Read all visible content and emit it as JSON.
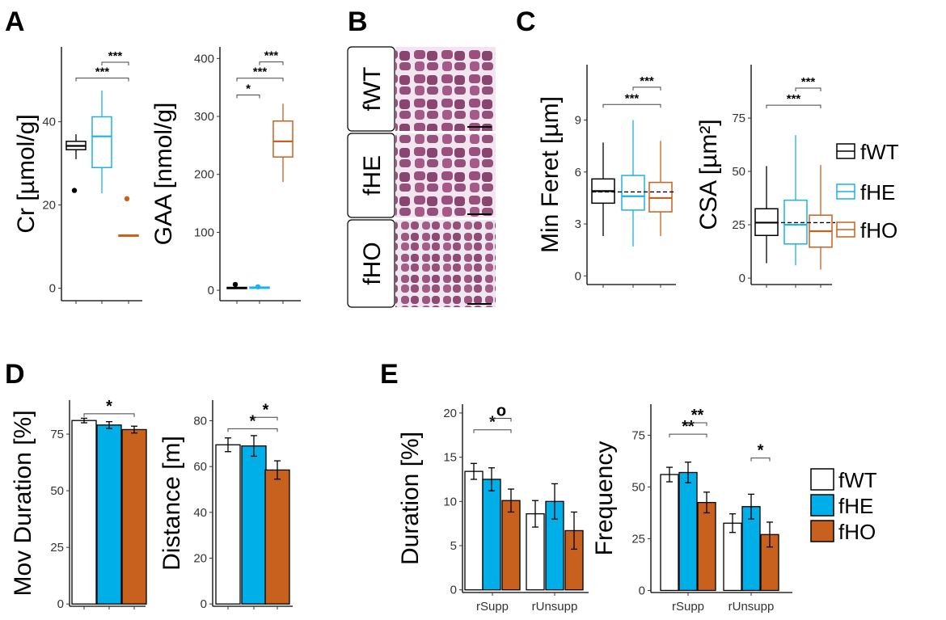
{
  "panels": [
    "A",
    "B",
    "C",
    "D",
    "E"
  ],
  "colors": {
    "fWT": "#000000",
    "fHE": "#1ab2e8",
    "fHO": "#c8611d"
  },
  "legend_C": [
    "fWT",
    "fHE",
    "fHO"
  ],
  "legend_E": [
    "fWT",
    "fHE",
    "fHO"
  ],
  "histology": {
    "rows": [
      "fWT",
      "fHE",
      "fHO"
    ]
  },
  "chart_data": [
    {
      "id": "A1",
      "type": "box",
      "ylabel": "Cr [µmol/g]",
      "yticks": [
        0,
        20,
        40
      ],
      "ylim": [
        -3,
        58
      ],
      "groups": [
        {
          "name": "fWT",
          "q1": 33.3,
          "median": 34.2,
          "q3": 35.3,
          "wmin": 31,
          "wmax": 37,
          "outliers": [
            23.5
          ]
        },
        {
          "name": "fHE",
          "q1": 29,
          "median": 36.5,
          "q3": 41.2,
          "wmin": 22.8,
          "wmax": 47.5,
          "outliers": []
        },
        {
          "name": "fHO",
          "q1": 12.5,
          "median": 12.7,
          "q3": 12.8,
          "wmin": 12.4,
          "wmax": 12.9,
          "outliers": [
            21.5
          ]
        }
      ],
      "sig": [
        {
          "from": 0,
          "to": 2,
          "label": "***",
          "y": 50.5
        },
        {
          "from": 1,
          "to": 2,
          "label": "***",
          "y": 54.3
        }
      ]
    },
    {
      "id": "A2",
      "type": "box",
      "ylabel": "GAA [nmol/g]",
      "yticks": [
        0,
        100,
        200,
        300,
        400
      ],
      "ylim": [
        -18,
        420
      ],
      "groups": [
        {
          "name": "fWT",
          "q1": 3,
          "median": 4,
          "q3": 5,
          "wmin": 2,
          "wmax": 6,
          "outliers": [
            10
          ]
        },
        {
          "name": "fHE",
          "q1": 3.5,
          "median": 4.5,
          "q3": 5.5,
          "wmin": 2.5,
          "wmax": 6.5,
          "outliers": [
            6
          ]
        },
        {
          "name": "fHO",
          "q1": 230,
          "median": 257,
          "q3": 292,
          "wmin": 187,
          "wmax": 322,
          "outliers": []
        }
      ],
      "sig": [
        {
          "from": 0,
          "to": 1,
          "label": "*",
          "y": 337
        },
        {
          "from": 0,
          "to": 2,
          "label": "***",
          "y": 366
        },
        {
          "from": 1,
          "to": 2,
          "label": "***",
          "y": 394
        }
      ]
    },
    {
      "id": "C1",
      "type": "box",
      "ylabel": "Min Feret [µm]",
      "yticks": [
        0,
        3,
        6,
        9
      ],
      "ylim": [
        -0.5,
        12.2
      ],
      "dashed_y": 4.85,
      "groups": [
        {
          "name": "fWT",
          "q1": 4.2,
          "median": 4.9,
          "q3": 5.6,
          "wmin": 2.3,
          "wmax": 7.7,
          "outliers": []
        },
        {
          "name": "fHE",
          "q1": 3.8,
          "median": 4.6,
          "q3": 5.8,
          "wmin": 1.7,
          "wmax": 9.0,
          "outliers": []
        },
        {
          "name": "fHO",
          "q1": 3.7,
          "median": 4.5,
          "q3": 5.4,
          "wmin": 2.3,
          "wmax": 7.8,
          "outliers": []
        }
      ],
      "sig": [
        {
          "from": 0,
          "to": 2,
          "label": "***",
          "y": 9.9
        },
        {
          "from": 1,
          "to": 2,
          "label": "***",
          "y": 10.9
        }
      ]
    },
    {
      "id": "C2",
      "type": "box",
      "ylabel": "CSA [µm²]",
      "yticks": [
        0,
        25,
        50,
        75
      ],
      "ylim": [
        -3,
        100
      ],
      "dashed_y": 26,
      "groups": [
        {
          "name": "fWT",
          "q1": 20,
          "median": 26,
          "q3": 32.5,
          "wmin": 7,
          "wmax": 52.5,
          "outliers": []
        },
        {
          "name": "fHE",
          "q1": 16,
          "median": 25,
          "q3": 36.5,
          "wmin": 6,
          "wmax": 67,
          "outliers": []
        },
        {
          "name": "fHO",
          "q1": 14.5,
          "median": 22,
          "q3": 29.5,
          "wmin": 4,
          "wmax": 53,
          "outliers": []
        }
      ],
      "sig": [
        {
          "from": 0,
          "to": 2,
          "label": "***",
          "y": 81
        },
        {
          "from": 1,
          "to": 2,
          "label": "***",
          "y": 89
        }
      ]
    },
    {
      "id": "D1",
      "type": "bar",
      "ylabel": "Mov Duration [%]",
      "yticks": [
        0,
        25,
        50,
        75
      ],
      "ylim": [
        -1,
        90
      ],
      "groups": [
        {
          "name": "fWT",
          "value": 81,
          "err": 1
        },
        {
          "name": "fHE",
          "value": 79,
          "err": 1.5
        },
        {
          "name": "fHO",
          "value": 77,
          "err": 1.5
        }
      ],
      "sig": [
        {
          "from": 0,
          "to": 2,
          "label": "*",
          "y": 84
        }
      ]
    },
    {
      "id": "D2",
      "type": "bar",
      "ylabel": "Distance [m]",
      "yticks": [
        0,
        20,
        40,
        60,
        80
      ],
      "ylim": [
        -1,
        89
      ],
      "groups": [
        {
          "name": "fWT",
          "value": 69.5,
          "err": 3
        },
        {
          "name": "fHE",
          "value": 69,
          "err": 4.5
        },
        {
          "name": "fHO",
          "value": 58.5,
          "err": 4
        }
      ],
      "sig": [
        {
          "from": 0,
          "to": 2,
          "label": "*",
          "y": 76.5
        },
        {
          "from": 1,
          "to": 2,
          "label": "*",
          "y": 81.5
        }
      ]
    },
    {
      "id": "E1",
      "type": "grouped_bar",
      "ylabel": "Duration [%]",
      "yticks": [
        0,
        5,
        10,
        15,
        20
      ],
      "ylim": [
        -0.3,
        21
      ],
      "categories": [
        "rSupp",
        "rUnsupp"
      ],
      "series": [
        {
          "name": "fWT",
          "values": [
            13.4,
            8.6
          ],
          "err": [
            0.9,
            1.5
          ]
        },
        {
          "name": "fHE",
          "values": [
            12.5,
            10.0
          ],
          "err": [
            1.3,
            2.0
          ]
        },
        {
          "name": "fHO",
          "values": [
            10.1,
            6.7
          ],
          "err": [
            1.3,
            2.1
          ]
        }
      ],
      "sig": [
        {
          "cat": 0,
          "from": 0,
          "to": 2,
          "label": "*",
          "y": 18.1
        },
        {
          "cat": 0,
          "from": 1,
          "to": 2,
          "label": "o",
          "y": 19.4
        }
      ]
    },
    {
      "id": "E2",
      "type": "grouped_bar",
      "ylabel": "Frequency",
      "yticks": [
        0,
        25,
        50,
        75
      ],
      "ylim": [
        -1,
        90
      ],
      "categories": [
        "rSupp",
        "rUnsupp"
      ],
      "series": [
        {
          "name": "fWT",
          "values": [
            56,
            32.5
          ],
          "err": [
            3.5,
            4.5
          ]
        },
        {
          "name": "fHE",
          "values": [
            57,
            40.5
          ],
          "err": [
            5,
            6
          ]
        },
        {
          "name": "fHO",
          "values": [
            42.5,
            27
          ],
          "err": [
            5,
            6
          ]
        }
      ],
      "sig": [
        {
          "cat": 0,
          "from": 0,
          "to": 2,
          "label": "**",
          "y": 75.5
        },
        {
          "cat": 0,
          "from": 1,
          "to": 2,
          "label": "**",
          "y": 81
        },
        {
          "cat": 1,
          "from": 1,
          "to": 2,
          "label": "*",
          "y": 64
        }
      ]
    }
  ]
}
